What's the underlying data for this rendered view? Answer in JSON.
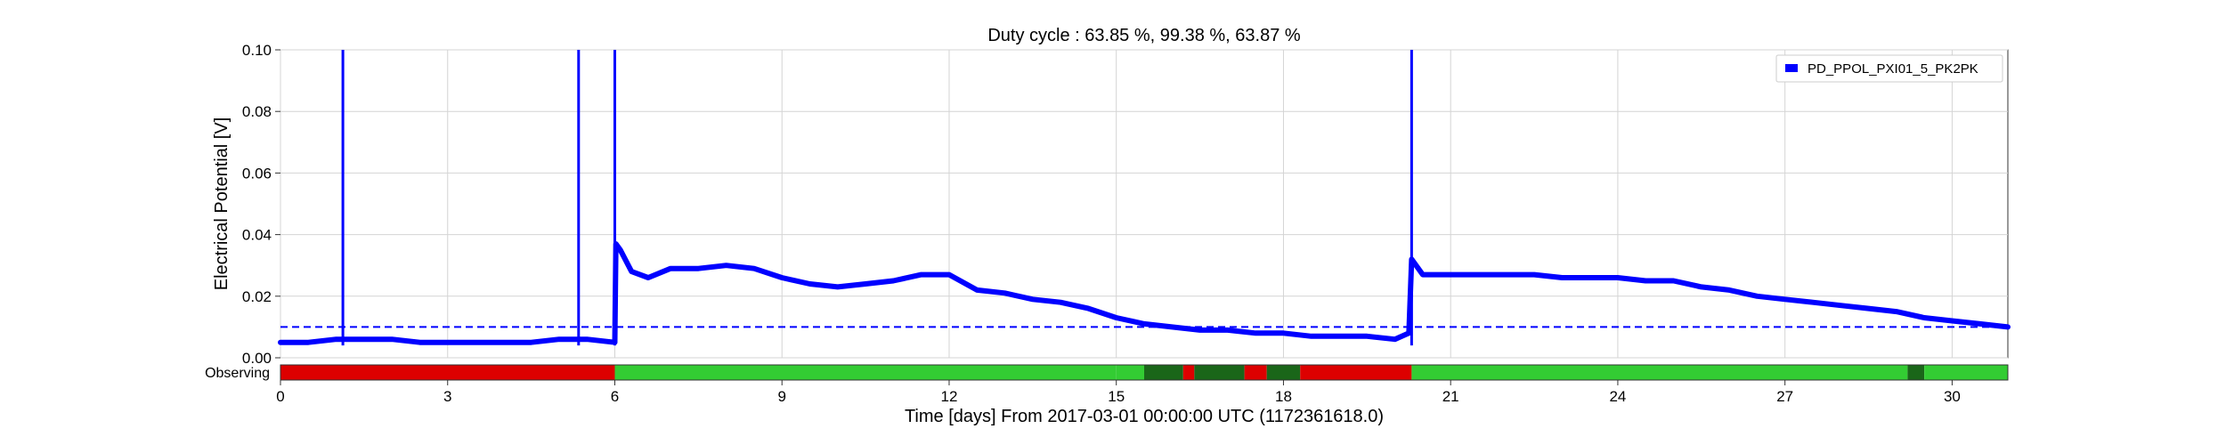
{
  "chart_data": {
    "type": "line",
    "title": "Duty cycle : 63.85 %, 99.38 %, 63.87 %",
    "xlabel": "Time [days] From 2017-03-01 00:00:00 UTC (1172361618.0)",
    "ylabel": "Electrical Potential [V]",
    "xlim": [
      0,
      31
    ],
    "ylim": [
      0,
      0.1
    ],
    "x_ticks": [
      "0",
      "3",
      "6",
      "9",
      "12",
      "15",
      "18",
      "21",
      "24",
      "27",
      "30"
    ],
    "x_tick_values": [
      0,
      3,
      6,
      9,
      12,
      15,
      18,
      21,
      24,
      27,
      30
    ],
    "y_ticks": [
      "0.00",
      "0.02",
      "0.04",
      "0.06",
      "0.08",
      "0.10"
    ],
    "y_tick_values": [
      0,
      0.02,
      0.04,
      0.06,
      0.08,
      0.1
    ],
    "grid": true,
    "legend_position": "top-right",
    "series": [
      {
        "name": "PD_PPOL_PXI01_5_PK2PK",
        "color": "#0000ff",
        "x": [
          0,
          0.5,
          1.0,
          1.5,
          2.0,
          2.5,
          3.0,
          3.5,
          4.0,
          4.5,
          5.0,
          5.5,
          6.0,
          6.02,
          6.1,
          6.3,
          6.6,
          7.0,
          7.5,
          8.0,
          8.5,
          9.0,
          9.5,
          10.0,
          10.5,
          11.0,
          11.5,
          12.0,
          12.5,
          13.0,
          13.5,
          14.0,
          14.5,
          15.0,
          15.5,
          16.0,
          16.5,
          17.0,
          17.5,
          18.0,
          18.5,
          19.0,
          19.5,
          20.0,
          20.25,
          20.3,
          20.5,
          21.0,
          21.5,
          22.0,
          22.5,
          23.0,
          23.5,
          24.0,
          24.5,
          25.0,
          25.5,
          26.0,
          26.5,
          27.0,
          27.5,
          28.0,
          28.5,
          29.0,
          29.5,
          30.0,
          30.5,
          31.0
        ],
        "y": [
          0.005,
          0.005,
          0.006,
          0.006,
          0.006,
          0.005,
          0.005,
          0.005,
          0.005,
          0.005,
          0.006,
          0.006,
          0.005,
          0.037,
          0.035,
          0.028,
          0.026,
          0.029,
          0.029,
          0.03,
          0.029,
          0.026,
          0.024,
          0.023,
          0.024,
          0.025,
          0.027,
          0.027,
          0.022,
          0.021,
          0.019,
          0.018,
          0.016,
          0.013,
          0.011,
          0.01,
          0.009,
          0.009,
          0.008,
          0.008,
          0.007,
          0.007,
          0.007,
          0.006,
          0.008,
          0.032,
          0.027,
          0.027,
          0.027,
          0.027,
          0.027,
          0.026,
          0.026,
          0.026,
          0.025,
          0.025,
          0.023,
          0.022,
          0.02,
          0.019,
          0.018,
          0.017,
          0.016,
          0.015,
          0.013,
          0.012,
          0.011,
          0.01
        ]
      }
    ],
    "spikes_x": [
      1.12,
      5.35,
      6.0,
      20.3
    ],
    "threshold": {
      "value": 0.01,
      "color": "#0000ff",
      "style": "dashed"
    },
    "segment_bar": {
      "label": "Observing",
      "off_color": "#dd0000",
      "on_color": "#33cc33",
      "dark_color": "#1a6619",
      "segments": [
        {
          "start": 0,
          "end": 6.0,
          "state": "off"
        },
        {
          "start": 6.0,
          "end": 15.0,
          "state": "on"
        },
        {
          "start": 15.0,
          "end": 15.5,
          "state": "on"
        },
        {
          "start": 15.5,
          "end": 16.2,
          "state": "dark"
        },
        {
          "start": 16.2,
          "end": 16.4,
          "state": "off"
        },
        {
          "start": 16.4,
          "end": 17.3,
          "state": "dark"
        },
        {
          "start": 17.3,
          "end": 17.7,
          "state": "off"
        },
        {
          "start": 17.7,
          "end": 18.3,
          "state": "dark"
        },
        {
          "start": 18.3,
          "end": 20.3,
          "state": "off"
        },
        {
          "start": 20.3,
          "end": 29.2,
          "state": "on"
        },
        {
          "start": 29.2,
          "end": 29.5,
          "state": "dark"
        },
        {
          "start": 29.5,
          "end": 31.0,
          "state": "on"
        }
      ]
    }
  }
}
